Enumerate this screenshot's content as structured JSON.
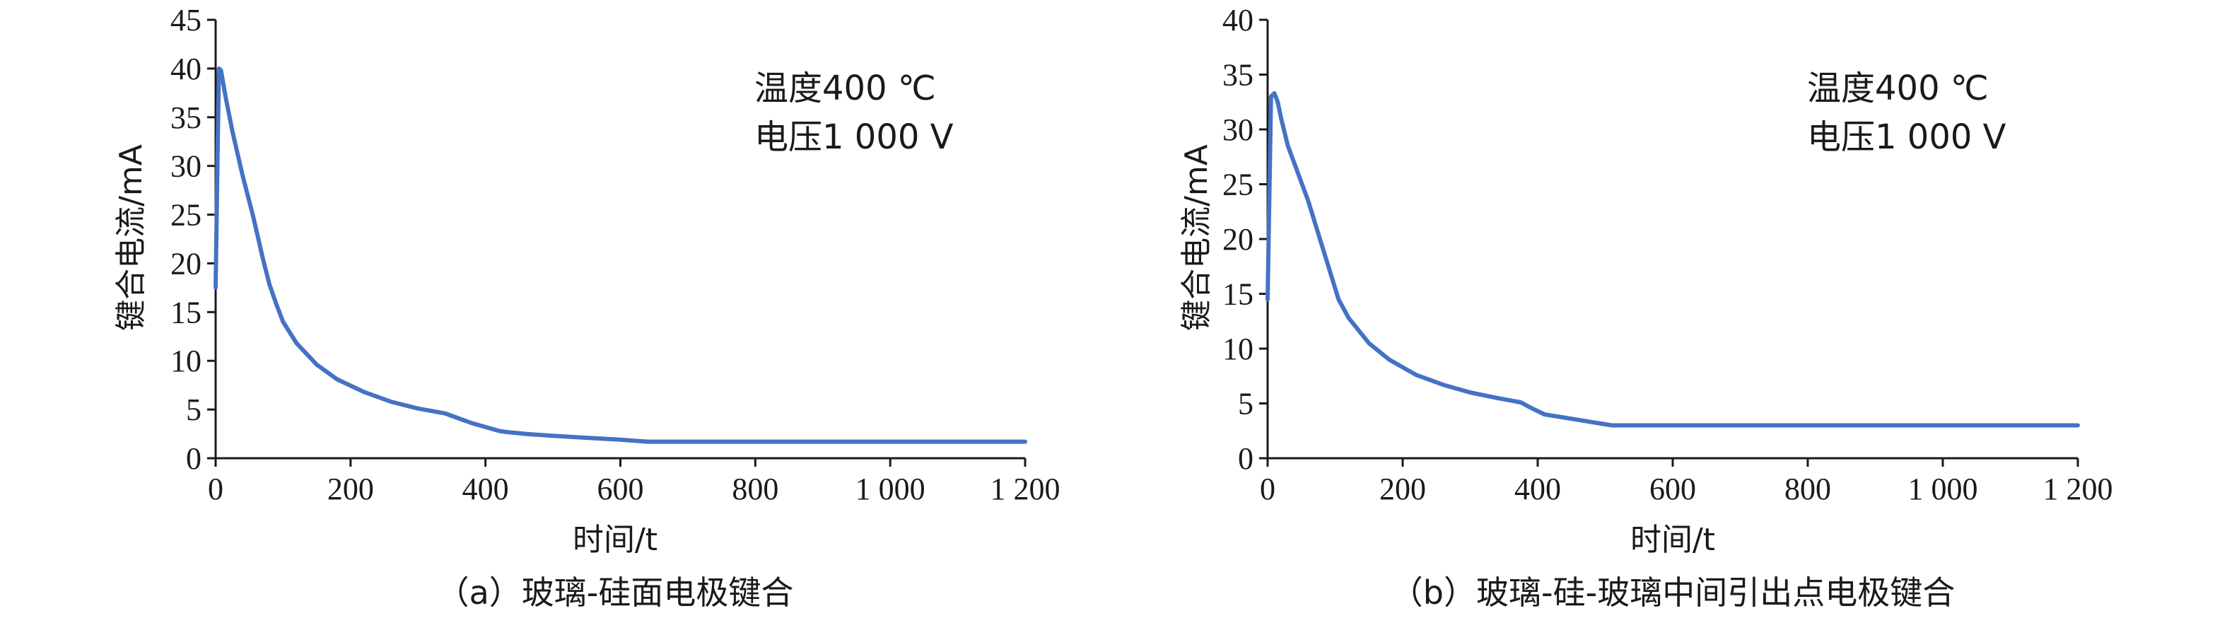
{
  "chart_data": [
    {
      "type": "line",
      "caption": "（a）玻璃-硅面电极键合",
      "xlabel": "时间/t",
      "ylabel": "键合电流/mA",
      "xlim": [
        0,
        1200
      ],
      "ylim": [
        0,
        45
      ],
      "xticks": [
        0,
        200,
        400,
        600,
        800,
        1000,
        1200
      ],
      "xtick_labels": [
        "0",
        "200",
        "400",
        "600",
        "800",
        "1 000",
        "1 200"
      ],
      "yticks": [
        0,
        5,
        10,
        15,
        20,
        25,
        30,
        35,
        40,
        45
      ],
      "ytick_labels": [
        "0",
        "5",
        "10",
        "15",
        "20",
        "25",
        "30",
        "35",
        "40",
        "45"
      ],
      "annotations": [
        "温度400 ℃",
        "电压1 000 V"
      ],
      "grid": false,
      "color": "#4472c4",
      "series": [
        {
          "x": [
            0,
            3,
            5,
            8,
            15,
            25,
            40,
            55,
            70,
            80,
            90,
            100,
            120,
            150,
            180,
            220,
            260,
            300,
            340,
            380,
            420,
            430,
            460,
            500,
            550,
            600,
            640,
            700,
            800,
            900,
            1000,
            1100,
            1200
          ],
          "y": [
            17.5,
            32,
            40,
            39.8,
            37,
            33.5,
            29,
            25,
            20.5,
            17.8,
            15.8,
            14,
            11.8,
            9.6,
            8.1,
            6.8,
            5.8,
            5.1,
            4.6,
            3.6,
            2.8,
            2.7,
            2.5,
            2.3,
            2.1,
            1.9,
            1.7,
            1.7,
            1.7,
            1.7,
            1.7,
            1.7,
            1.7
          ]
        }
      ]
    },
    {
      "type": "line",
      "caption": "（b）玻璃-硅-玻璃中间引出点电极键合",
      "xlabel": "时间/t",
      "ylabel": "键合电流/mA",
      "xlim": [
        0,
        1200
      ],
      "ylim": [
        0,
        40
      ],
      "xticks": [
        0,
        200,
        400,
        600,
        800,
        1000,
        1200
      ],
      "xtick_labels": [
        "0",
        "200",
        "400",
        "600",
        "800",
        "1 000",
        "1 200"
      ],
      "yticks": [
        0,
        5,
        10,
        15,
        20,
        25,
        30,
        35,
        40
      ],
      "ytick_labels": [
        "0",
        "5",
        "10",
        "15",
        "20",
        "25",
        "30",
        "35",
        "40"
      ],
      "annotations": [
        "温度400 ℃",
        "电压1 000 V"
      ],
      "grid": false,
      "color": "#4472c4",
      "series": [
        {
          "x": [
            0,
            5,
            10,
            15,
            20,
            30,
            45,
            60,
            75,
            90,
            105,
            120,
            150,
            180,
            220,
            260,
            300,
            340,
            375,
            390,
            410,
            450,
            500,
            510,
            600,
            700,
            800,
            900,
            1000,
            1100,
            1200
          ],
          "y": [
            14.5,
            33,
            33.3,
            32.5,
            31,
            28.5,
            26,
            23.5,
            20.5,
            17.5,
            14.5,
            12.8,
            10.5,
            9,
            7.6,
            6.7,
            6,
            5.5,
            5.1,
            4.6,
            4,
            3.6,
            3.1,
            3,
            3,
            3,
            3,
            3,
            3,
            3,
            3
          ]
        }
      ]
    }
  ]
}
